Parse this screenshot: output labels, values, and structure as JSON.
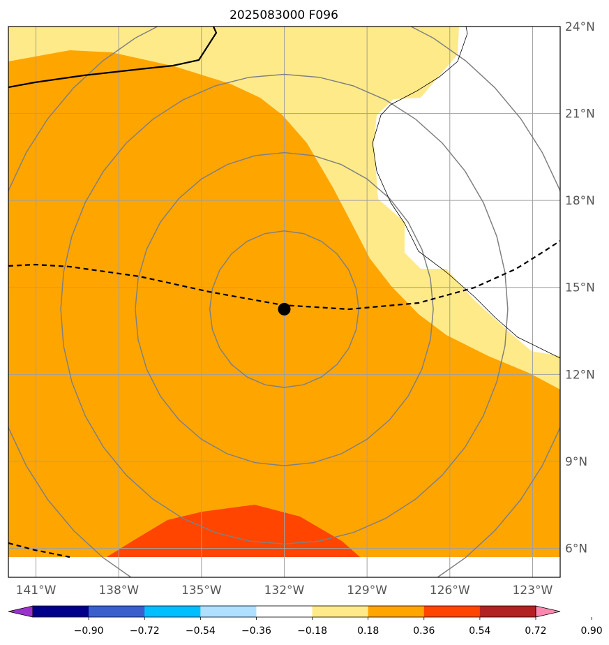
{
  "title": "2025083000 F096",
  "map": {
    "lon_range": [
      -142,
      -122
    ],
    "lat_range": [
      5,
      24
    ],
    "x_ticks": [
      {
        "lon": -141,
        "label": "141°W"
      },
      {
        "lon": -138,
        "label": "138°W"
      },
      {
        "lon": -135,
        "label": "135°W"
      },
      {
        "lon": -132,
        "label": "132°W"
      },
      {
        "lon": -129,
        "label": "129°W"
      },
      {
        "lon": -126,
        "label": "126°W"
      },
      {
        "lon": -123,
        "label": "123°W"
      }
    ],
    "y_ticks": [
      {
        "lat": 24,
        "label": "24°N"
      },
      {
        "lat": 21,
        "label": "21°N"
      },
      {
        "lat": 18,
        "label": "18°N"
      },
      {
        "lat": 15,
        "label": "15°N"
      },
      {
        "lat": 12,
        "label": "12°N"
      },
      {
        "lat": 9,
        "label": "9°N"
      },
      {
        "lat": 6,
        "label": "6°N"
      }
    ],
    "center_marker": {
      "lon": -132,
      "lat": 14.25
    },
    "range_ring_radii_deg": [
      2.7,
      5.4,
      8.1,
      10.8
    ],
    "colors": {
      "fill_low": "#ffea8a",
      "fill_mid": "#ffa500",
      "fill_high": "#ff4500",
      "ring": "#808080",
      "grid": "#a0a0a0"
    }
  },
  "colorbar": {
    "colors": [
      "#9932cc",
      "#00008b",
      "#3a5fcd",
      "#00bfff",
      "#b0e0ff",
      "#ffffff",
      "#ffea8a",
      "#ffa500",
      "#ff4500",
      "#b22222",
      "#ff88b0"
    ],
    "tick_labels": [
      "−0.90",
      "−0.72",
      "−0.54",
      "−0.36",
      "−0.18",
      "0.18",
      "0.36",
      "0.54",
      "0.72",
      "0.90"
    ]
  }
}
